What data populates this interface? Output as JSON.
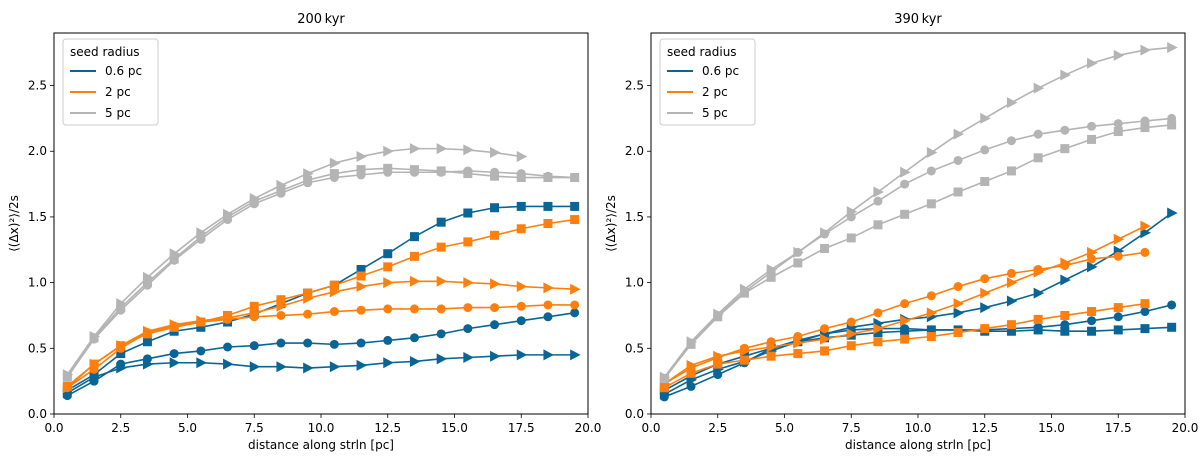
{
  "chart_data": [
    {
      "type": "line",
      "title": "200 kyr",
      "xlabel": "distance along strln [pc]",
      "ylabel": "⟨(Δx)²⟩/2s",
      "xlim": [
        0,
        20
      ],
      "ylim": [
        0,
        2.9
      ],
      "xticks": [
        "0.0",
        "2.5",
        "5.0",
        "7.5",
        "10.0",
        "12.5",
        "15.0",
        "17.5",
        "20.0"
      ],
      "yticks": [
        "0.0",
        "0.5",
        "1.0",
        "1.5",
        "2.0",
        "2.5"
      ],
      "legend": {
        "title": "seed radius",
        "entries": [
          "0.6 pc",
          "2 pc",
          "5 pc"
        ],
        "position": "upper-left"
      },
      "series": [
        {
          "name": "0.6 pc",
          "marker": "square",
          "color": "#0a6597",
          "x": [
            0.5,
            1.5,
            2.5,
            3.5,
            4.5,
            5.5,
            6.5,
            7.5,
            8.5,
            9.5,
            10.5,
            11.5,
            12.5,
            13.5,
            14.5,
            15.5,
            16.5,
            17.5,
            18.5,
            19.5
          ],
          "y": [
            0.18,
            0.3,
            0.46,
            0.55,
            0.63,
            0.66,
            0.7,
            0.76,
            0.84,
            0.92,
            0.98,
            1.1,
            1.22,
            1.35,
            1.46,
            1.53,
            1.57,
            1.58,
            1.58,
            1.58
          ]
        },
        {
          "name": "0.6 pc",
          "marker": "circle",
          "color": "#0a6597",
          "x": [
            0.5,
            1.5,
            2.5,
            3.5,
            4.5,
            5.5,
            6.5,
            7.5,
            8.5,
            9.5,
            10.5,
            11.5,
            12.5,
            13.5,
            14.5,
            15.5,
            16.5,
            17.5,
            18.5,
            19.5
          ],
          "y": [
            0.14,
            0.25,
            0.38,
            0.42,
            0.46,
            0.48,
            0.51,
            0.52,
            0.54,
            0.54,
            0.53,
            0.54,
            0.56,
            0.58,
            0.61,
            0.65,
            0.68,
            0.71,
            0.74,
            0.77
          ]
        },
        {
          "name": "0.6 pc",
          "marker": "triangle",
          "color": "#0a6597",
          "x": [
            0.5,
            1.5,
            2.5,
            3.5,
            4.5,
            5.5,
            6.5,
            7.5,
            8.5,
            9.5,
            10.5,
            11.5,
            12.5,
            13.5,
            14.5,
            15.5,
            16.5,
            17.5,
            18.5,
            19.5
          ],
          "y": [
            0.16,
            0.28,
            0.35,
            0.38,
            0.39,
            0.39,
            0.38,
            0.36,
            0.36,
            0.35,
            0.36,
            0.37,
            0.39,
            0.4,
            0.42,
            0.43,
            0.44,
            0.45,
            0.45,
            0.45
          ]
        },
        {
          "name": "2 pc",
          "marker": "square",
          "color": "#ff7f0e",
          "x": [
            0.5,
            1.5,
            2.5,
            3.5,
            4.5,
            5.5,
            6.5,
            7.5,
            8.5,
            9.5,
            10.5,
            11.5,
            12.5,
            13.5,
            14.5,
            15.5,
            16.5,
            17.5,
            18.5,
            19.5
          ],
          "y": [
            0.21,
            0.38,
            0.52,
            0.61,
            0.66,
            0.7,
            0.75,
            0.82,
            0.87,
            0.92,
            0.98,
            1.05,
            1.12,
            1.2,
            1.27,
            1.31,
            1.36,
            1.41,
            1.45,
            1.48
          ]
        },
        {
          "name": "2 pc",
          "marker": "circle",
          "color": "#ff7f0e",
          "x": [
            0.5,
            1.5,
            2.5,
            3.5,
            4.5,
            5.5,
            6.5,
            7.5,
            8.5,
            9.5,
            10.5,
            11.5,
            12.5,
            13.5,
            14.5,
            15.5,
            16.5,
            17.5,
            18.5,
            19.5
          ],
          "y": [
            0.2,
            0.34,
            0.5,
            0.62,
            0.67,
            0.7,
            0.72,
            0.74,
            0.75,
            0.76,
            0.78,
            0.79,
            0.8,
            0.8,
            0.8,
            0.81,
            0.81,
            0.82,
            0.83,
            0.83
          ]
        },
        {
          "name": "2 pc",
          "marker": "triangle",
          "color": "#ff7f0e",
          "x": [
            0.5,
            1.5,
            2.5,
            3.5,
            4.5,
            5.5,
            6.5,
            7.5,
            8.5,
            9.5,
            10.5,
            11.5,
            12.5,
            13.5,
            14.5,
            15.5,
            16.5,
            17.5,
            18.5,
            19.5
          ],
          "y": [
            0.2,
            0.38,
            0.52,
            0.63,
            0.68,
            0.71,
            0.73,
            0.77,
            0.82,
            0.88,
            0.93,
            0.97,
            1.0,
            1.01,
            1.01,
            1.0,
            0.99,
            0.97,
            0.96,
            0.95
          ]
        },
        {
          "name": "5 pc",
          "marker": "square",
          "color": "#b4b4b4",
          "x": [
            0.5,
            1.5,
            2.5,
            3.5,
            4.5,
            5.5,
            6.5,
            7.5,
            8.5,
            9.5,
            10.5,
            11.5,
            12.5,
            13.5,
            14.5,
            15.5,
            16.5,
            17.5,
            18.5,
            19.5
          ],
          "y": [
            0.28,
            0.58,
            0.81,
            1.0,
            1.18,
            1.35,
            1.5,
            1.62,
            1.7,
            1.78,
            1.83,
            1.86,
            1.87,
            1.86,
            1.85,
            1.83,
            1.81,
            1.8,
            1.8,
            1.8
          ]
        },
        {
          "name": "5 pc",
          "marker": "circle",
          "color": "#b4b4b4",
          "x": [
            0.5,
            1.5,
            2.5,
            3.5,
            4.5,
            5.5,
            6.5,
            7.5,
            8.5,
            9.5,
            10.5,
            11.5,
            12.5,
            13.5,
            14.5,
            15.5,
            16.5,
            17.5,
            18.5,
            19.5
          ],
          "y": [
            0.28,
            0.57,
            0.79,
            0.98,
            1.17,
            1.33,
            1.48,
            1.6,
            1.68,
            1.76,
            1.8,
            1.82,
            1.84,
            1.84,
            1.84,
            1.85,
            1.84,
            1.83,
            1.81,
            1.8
          ]
        },
        {
          "name": "5 pc",
          "marker": "triangle",
          "color": "#b4b4b4",
          "x": [
            0.5,
            1.5,
            2.5,
            3.5,
            4.5,
            5.5,
            6.5,
            7.5,
            8.5,
            9.5,
            10.5,
            11.5,
            12.5,
            13.5,
            14.5,
            15.5,
            16.5,
            17.5
          ],
          "y": [
            0.3,
            0.59,
            0.84,
            1.04,
            1.22,
            1.38,
            1.52,
            1.64,
            1.74,
            1.83,
            1.91,
            1.96,
            2.0,
            2.02,
            2.02,
            2.01,
            1.99,
            1.96
          ]
        }
      ]
    },
    {
      "type": "line",
      "title": "390 kyr",
      "xlabel": "distance along strln [pc]",
      "ylabel": "⟨(Δx)²⟩/2s",
      "xlim": [
        0,
        20
      ],
      "ylim": [
        0,
        2.9
      ],
      "xticks": [
        "0.0",
        "2.5",
        "5.0",
        "7.5",
        "10.0",
        "12.5",
        "15.0",
        "17.5",
        "20.0"
      ],
      "yticks": [
        "0.0",
        "0.5",
        "1.0",
        "1.5",
        "2.0",
        "2.5"
      ],
      "legend": {
        "title": "seed radius",
        "entries": [
          "0.6 pc",
          "2 pc",
          "5 pc"
        ],
        "position": "upper-left"
      },
      "series": [
        {
          "name": "0.6 pc",
          "marker": "square",
          "color": "#0a6597",
          "x": [
            0.5,
            1.5,
            2.5,
            3.5,
            4.5,
            5.5,
            6.5,
            7.5,
            8.5,
            9.5,
            10.5,
            11.5,
            12.5,
            13.5,
            14.5,
            15.5,
            16.5,
            17.5,
            18.5,
            19.5
          ],
          "y": [
            0.18,
            0.29,
            0.38,
            0.44,
            0.5,
            0.55,
            0.58,
            0.6,
            0.62,
            0.63,
            0.64,
            0.64,
            0.63,
            0.63,
            0.64,
            0.63,
            0.63,
            0.64,
            0.65,
            0.66
          ]
        },
        {
          "name": "0.6 pc",
          "marker": "circle",
          "color": "#0a6597",
          "x": [
            0.5,
            1.5,
            2.5,
            3.5,
            4.5,
            5.5,
            6.5,
            7.5,
            8.5,
            9.5,
            10.5,
            11.5,
            12.5,
            13.5,
            14.5,
            15.5,
            16.5,
            17.5,
            18.5,
            19.5
          ],
          "y": [
            0.13,
            0.21,
            0.3,
            0.39,
            0.5,
            0.56,
            0.61,
            0.64,
            0.65,
            0.65,
            0.64,
            0.64,
            0.64,
            0.65,
            0.66,
            0.68,
            0.71,
            0.74,
            0.78,
            0.83
          ]
        },
        {
          "name": "0.6 pc",
          "marker": "triangle",
          "color": "#0a6597",
          "x": [
            0.5,
            1.5,
            2.5,
            3.5,
            4.5,
            5.5,
            6.5,
            7.5,
            8.5,
            9.5,
            10.5,
            11.5,
            12.5,
            13.5,
            14.5,
            15.5,
            16.5,
            17.5,
            18.5,
            19.5
          ],
          "y": [
            0.15,
            0.26,
            0.34,
            0.4,
            0.48,
            0.55,
            0.61,
            0.66,
            0.69,
            0.72,
            0.74,
            0.77,
            0.81,
            0.86,
            0.92,
            1.02,
            1.12,
            1.24,
            1.38,
            1.53
          ]
        },
        {
          "name": "2 pc",
          "marker": "square",
          "color": "#ff7f0e",
          "x": [
            0.5,
            1.5,
            2.5,
            3.5,
            4.5,
            5.5,
            6.5,
            7.5,
            8.5,
            9.5,
            10.5,
            11.5,
            12.5,
            13.5,
            14.5,
            15.5,
            16.5,
            17.5,
            18.5
          ],
          "y": [
            0.2,
            0.31,
            0.38,
            0.41,
            0.44,
            0.46,
            0.48,
            0.52,
            0.55,
            0.57,
            0.59,
            0.62,
            0.65,
            0.68,
            0.72,
            0.75,
            0.78,
            0.81,
            0.84
          ]
        },
        {
          "name": "2 pc",
          "marker": "circle",
          "color": "#ff7f0e",
          "x": [
            0.5,
            1.5,
            2.5,
            3.5,
            4.5,
            5.5,
            6.5,
            7.5,
            8.5,
            9.5,
            10.5,
            11.5,
            12.5,
            13.5,
            14.5,
            15.5,
            16.5,
            17.5,
            18.5
          ],
          "y": [
            0.23,
            0.35,
            0.43,
            0.5,
            0.55,
            0.59,
            0.65,
            0.7,
            0.77,
            0.84,
            0.9,
            0.97,
            1.03,
            1.07,
            1.1,
            1.13,
            1.18,
            1.2,
            1.23
          ]
        },
        {
          "name": "2 pc",
          "marker": "triangle",
          "color": "#ff7f0e",
          "x": [
            0.5,
            1.5,
            2.5,
            3.5,
            4.5,
            5.5,
            6.5,
            7.5,
            8.5,
            9.5,
            10.5,
            11.5,
            12.5,
            13.5,
            14.5,
            15.5,
            16.5,
            17.5,
            18.5
          ],
          "y": [
            0.23,
            0.37,
            0.44,
            0.48,
            0.51,
            0.54,
            0.57,
            0.61,
            0.65,
            0.71,
            0.77,
            0.84,
            0.92,
            1.0,
            1.08,
            1.15,
            1.23,
            1.33,
            1.43
          ]
        },
        {
          "name": "5 pc",
          "marker": "square",
          "color": "#b4b4b4",
          "x": [
            0.5,
            1.5,
            2.5,
            3.5,
            4.5,
            5.5,
            6.5,
            7.5,
            8.5,
            9.5,
            10.5,
            11.5,
            12.5,
            13.5,
            14.5,
            15.5,
            16.5,
            17.5,
            18.5,
            19.5
          ],
          "y": [
            0.27,
            0.53,
            0.74,
            0.92,
            1.04,
            1.15,
            1.26,
            1.34,
            1.44,
            1.52,
            1.6,
            1.69,
            1.77,
            1.85,
            1.95,
            2.02,
            2.09,
            2.15,
            2.18,
            2.2
          ]
        },
        {
          "name": "5 pc",
          "marker": "circle",
          "color": "#b4b4b4",
          "x": [
            0.5,
            1.5,
            2.5,
            3.5,
            4.5,
            5.5,
            6.5,
            7.5,
            8.5,
            9.5,
            10.5,
            11.5,
            12.5,
            13.5,
            14.5,
            15.5,
            16.5,
            17.5,
            18.5,
            19.5
          ],
          "y": [
            0.27,
            0.54,
            0.75,
            0.93,
            1.08,
            1.23,
            1.37,
            1.5,
            1.62,
            1.75,
            1.85,
            1.93,
            2.01,
            2.08,
            2.13,
            2.16,
            2.19,
            2.21,
            2.23,
            2.25
          ]
        },
        {
          "name": "5 pc",
          "marker": "triangle",
          "color": "#b4b4b4",
          "x": [
            0.5,
            1.5,
            2.5,
            3.5,
            4.5,
            5.5,
            6.5,
            7.5,
            8.5,
            9.5,
            10.5,
            11.5,
            12.5,
            13.5,
            14.5,
            15.5,
            16.5,
            17.5,
            18.5,
            19.5
          ],
          "y": [
            0.28,
            0.55,
            0.76,
            0.95,
            1.1,
            1.23,
            1.38,
            1.54,
            1.69,
            1.84,
            1.99,
            2.13,
            2.25,
            2.37,
            2.48,
            2.58,
            2.67,
            2.73,
            2.77,
            2.79
          ]
        }
      ]
    }
  ]
}
